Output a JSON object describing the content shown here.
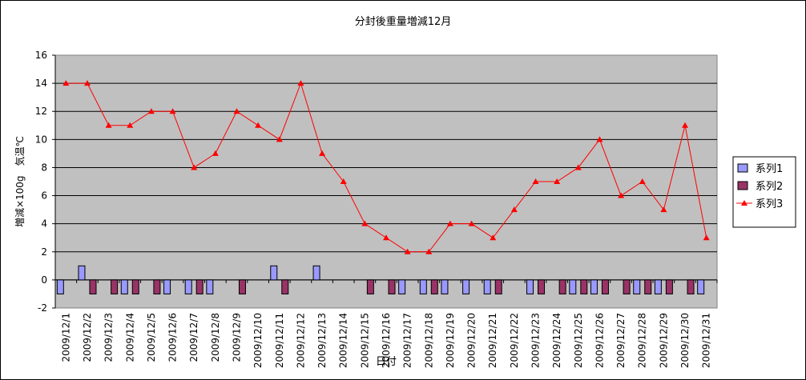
{
  "chart_data": {
    "type": "bar",
    "title": "分封後重量増減12月",
    "xlabel": "日付",
    "ylabel": "増減×100g　気温℃",
    "ylim": [
      -2,
      16
    ],
    "yticks": [
      -2,
      0,
      2,
      4,
      6,
      8,
      10,
      12,
      14,
      16
    ],
    "grid": true,
    "legend_position": "right",
    "categories": [
      "2009/12/1",
      "2009/12/2",
      "2009/12/3",
      "2009/12/4",
      "2009/12/5",
      "2009/12/6",
      "2009/12/7",
      "2009/12/8",
      "2009/12/9",
      "2009/12/10",
      "2009/12/11",
      "2009/12/12",
      "2009/12/13",
      "2009/12/14",
      "2009/12/15",
      "2009/12/16",
      "2009/12/17",
      "2009/12/18",
      "2009/12/19",
      "2009/12/20",
      "2009/12/21",
      "2009/12/22",
      "2009/12/23",
      "2009/12/24",
      "2009/12/25",
      "2009/12/26",
      "2009/12/27",
      "2009/12/28",
      "2009/12/29",
      "2009/12/30",
      "2009/12/31"
    ],
    "series": [
      {
        "name": "系列1",
        "type": "bar",
        "color": "#9999ff",
        "values": [
          -1,
          1,
          0,
          -1,
          0,
          -1,
          -1,
          -1,
          0,
          0,
          1,
          0,
          1,
          0,
          0,
          0,
          -1,
          -1,
          -1,
          -1,
          -1,
          0,
          -1,
          0,
          -1,
          -1,
          0,
          -1,
          -1,
          0,
          -1
        ]
      },
      {
        "name": "系列2",
        "type": "bar",
        "color": "#993366",
        "values": [
          0,
          -1,
          -1,
          -1,
          -1,
          0,
          -1,
          0,
          -1,
          0,
          -1,
          0,
          0,
          0,
          -1,
          -1,
          0,
          -1,
          0,
          0,
          -1,
          0,
          -1,
          -1,
          -1,
          -1,
          -1,
          -1,
          -1,
          -1,
          0
        ]
      },
      {
        "name": "系列3",
        "type": "line",
        "color": "#ff0000",
        "values": [
          14,
          14,
          11,
          11,
          12,
          12,
          8,
          9,
          12,
          11,
          10,
          14,
          9,
          7,
          4,
          3,
          2,
          2,
          4,
          4,
          3,
          5,
          7,
          7,
          8,
          10,
          6,
          7,
          5,
          11,
          3
        ]
      }
    ],
    "plot_bg": "#c0c0c0"
  }
}
